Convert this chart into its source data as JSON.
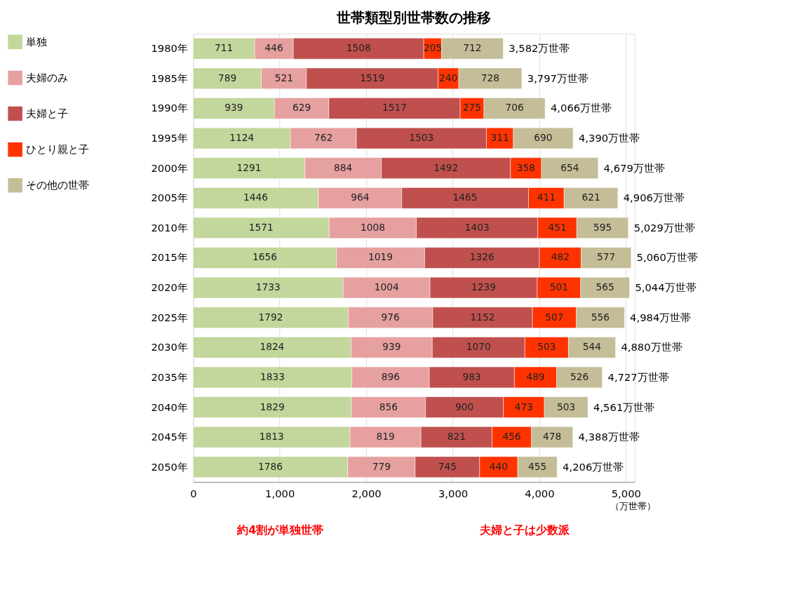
{
  "chart_data": {
    "type": "bar",
    "orientation": "horizontal",
    "stacked": true,
    "title": "世帯類型別世帯数の推移",
    "xlabel": "（万世帯）",
    "categories": [
      "1980年",
      "1985年",
      "1990年",
      "1995年",
      "2000年",
      "2005年",
      "2010年",
      "2015年",
      "2020年",
      "2025年",
      "2030年",
      "2035年",
      "2040年",
      "2045年",
      "2050年"
    ],
    "series": [
      {
        "name": "単独",
        "color": "#c3d69b",
        "values": [
          711,
          789,
          939,
          1124,
          1291,
          1446,
          1571,
          1656,
          1733,
          1792,
          1824,
          1833,
          1829,
          1813,
          1786
        ]
      },
      {
        "name": "夫婦のみ",
        "color": "#e6a0a0",
        "values": [
          446,
          521,
          629,
          762,
          884,
          964,
          1008,
          1019,
          1004,
          976,
          939,
          896,
          856,
          819,
          779
        ]
      },
      {
        "name": "夫婦と子",
        "color": "#c0504d",
        "values": [
          1508,
          1519,
          1517,
          1503,
          1492,
          1465,
          1403,
          1326,
          1239,
          1152,
          1070,
          983,
          900,
          821,
          745
        ]
      },
      {
        "name": "ひとり親と子",
        "color": "#ff3300",
        "values": [
          205,
          240,
          275,
          311,
          358,
          411,
          451,
          482,
          501,
          507,
          503,
          489,
          473,
          456,
          440
        ]
      },
      {
        "name": "その他の世帯",
        "color": "#c4bd97",
        "values": [
          712,
          728,
          706,
          690,
          654,
          621,
          595,
          577,
          565,
          556,
          544,
          526,
          503,
          478,
          455
        ]
      }
    ],
    "totals": [
      "3,582万世帯",
      "3,797万世帯",
      "4,066万世帯",
      "4,390万世帯",
      "4,679万世帯",
      "4,906万世帯",
      "5,029万世帯",
      "5,060万世帯",
      "5,044万世帯",
      "4,984万世帯",
      "4,880万世帯",
      "4,727万世帯",
      "4,561万世帯",
      "4,388万世帯",
      "4,206万世帯"
    ],
    "xlim": [
      0,
      5100
    ],
    "xticks": [
      0,
      {
        "value": 1000,
        "label": "1,000"
      },
      {
        "value": 2000,
        "label": "2,000"
      },
      {
        "value": 3000,
        "label": "3,000"
      },
      {
        "value": 4000,
        "label": "4,000"
      },
      {
        "value": 5000,
        "label": "5,000"
      }
    ],
    "grid": "x",
    "legend": "left",
    "data_labels": true,
    "annotations": [
      "約4割が単独世帯",
      "夫婦と子は少数派"
    ]
  }
}
